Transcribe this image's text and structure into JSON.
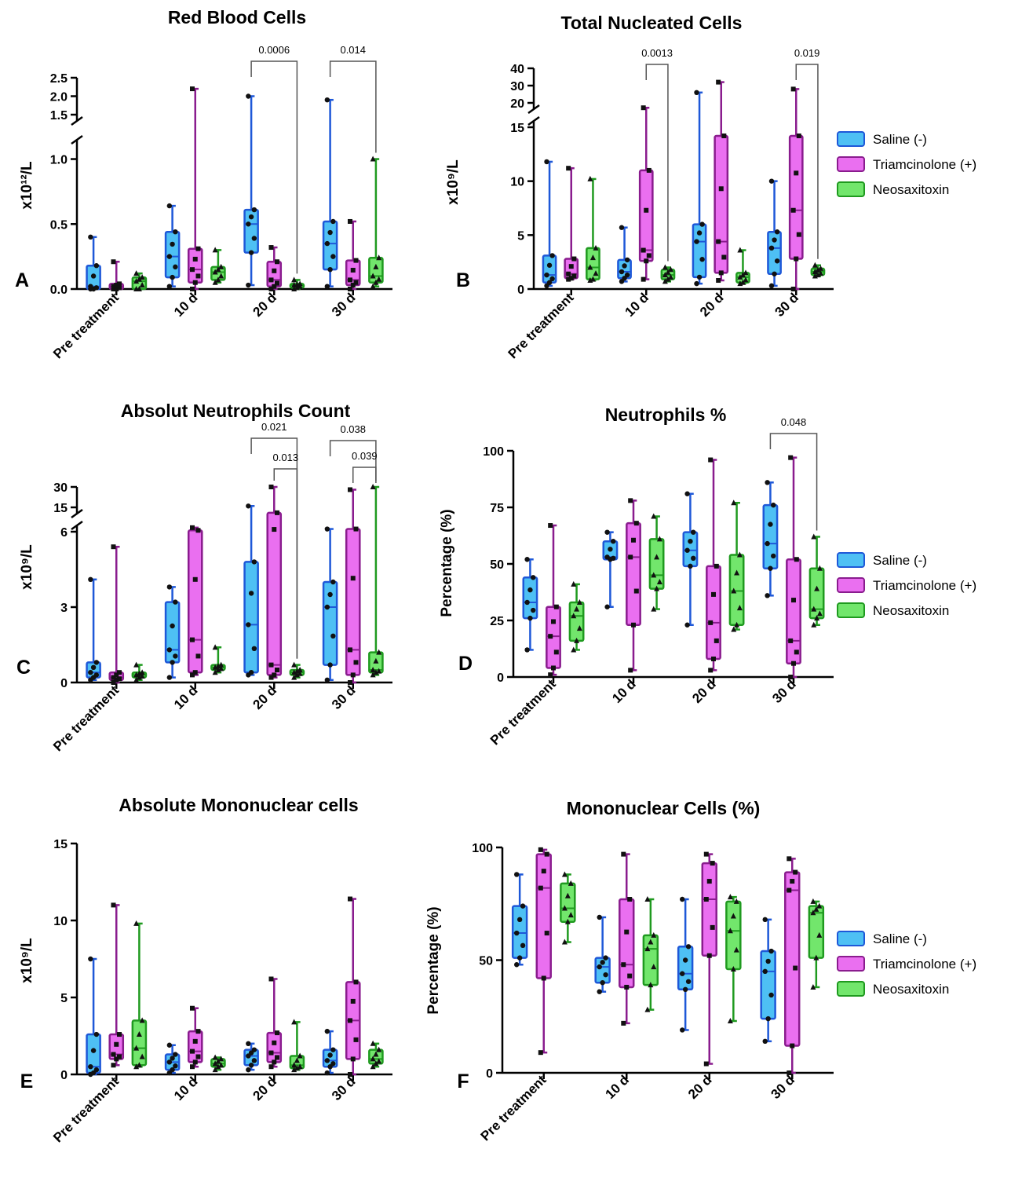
{
  "colors": {
    "saline": {
      "fill": "#4ec0f4",
      "stroke": "#1e58d8"
    },
    "triam": {
      "fill": "#ea6ff0",
      "stroke": "#8a1c8e"
    },
    "neo": {
      "fill": "#72e66c",
      "stroke": "#1f9a1f"
    }
  },
  "chart_data": [
    {
      "type": "box",
      "panel": "A",
      "title": "Red Blood Cells",
      "ylabel": "x10¹²/L",
      "categories": [
        "Pre treatment",
        "10 d",
        "20 d",
        "30 d"
      ],
      "y_axis": {
        "lower": [
          0,
          1.1
        ],
        "upper": [
          1.5,
          2.5
        ],
        "broken": true
      },
      "lower_ticks": [
        "0.0",
        "0.5",
        "1.0"
      ],
      "upper_ticks": [
        "1.5",
        "2.0",
        "2.5"
      ],
      "series": [
        {
          "name": "Saline (-)",
          "boxes": [
            [
              0,
              0,
              0.02,
              0.18,
              0.4
            ],
            [
              0.02,
              0.09,
              0.25,
              0.44,
              0.64
            ],
            [
              0.03,
              0.28,
              0.5,
              0.61,
              2.0
            ],
            [
              0.02,
              0.15,
              0.35,
              0.52,
              1.9
            ]
          ]
        },
        {
          "name": "Triamcinolone (+)",
          "boxes": [
            [
              0,
              0,
              0.02,
              0.04,
              0.21
            ],
            [
              0,
              0.05,
              0.15,
              0.31,
              2.2
            ],
            [
              0,
              0.02,
              0.07,
              0.21,
              0.32
            ],
            [
              0,
              0.03,
              0.07,
              0.22,
              0.52
            ]
          ]
        },
        {
          "name": "Neosaxitoxin",
          "boxes": [
            [
              0,
              0,
              0.06,
              0.09,
              0.12
            ],
            [
              0.05,
              0.07,
              0.13,
              0.17,
              0.3
            ],
            [
              0,
              0.01,
              0.03,
              0.04,
              0.07
            ],
            [
              0.02,
              0.05,
              0.1,
              0.24,
              1.0
            ]
          ]
        }
      ],
      "significance": [
        {
          "label": "0.0006",
          "category": "20 d",
          "from": "Saline (-)",
          "to": "Neosaxitoxin"
        },
        {
          "label": "0.014",
          "category": "30 d",
          "from": "Saline (-)",
          "to": "Neosaxitoxin"
        }
      ]
    },
    {
      "type": "box",
      "panel": "B",
      "title": "Total Nucleated Cells",
      "ylabel": "x10⁹/L",
      "categories": [
        "Pre treatment",
        "10 d",
        "20 d",
        "30 d"
      ],
      "y_axis": {
        "lower": [
          0,
          15
        ],
        "upper": [
          20,
          40
        ],
        "broken": true
      },
      "lower_ticks": [
        "0",
        "5",
        "10",
        "15"
      ],
      "upper_ticks": [
        "20",
        "30",
        "40"
      ],
      "series": [
        {
          "name": "Saline (-)",
          "boxes": [
            [
              0.3,
              0.6,
              1.3,
              3.1,
              11.8
            ],
            [
              0.7,
              1.0,
              1.6,
              2.7,
              5.7
            ],
            [
              0.5,
              1.1,
              4.4,
              6.0,
              26
            ],
            [
              0.3,
              1.4,
              3.8,
              5.3,
              10.0
            ]
          ]
        },
        {
          "name": "Triamcinolone (+)",
          "boxes": [
            [
              0.9,
              1.0,
              1.4,
              2.8,
              11.2
            ],
            [
              0.9,
              2.6,
              3.6,
              11.0,
              19
            ],
            [
              0.8,
              1.5,
              4.4,
              14.2,
              32
            ],
            [
              0,
              2.8,
              7.3,
              14.2,
              28
            ]
          ]
        },
        {
          "name": "Neosaxitoxin",
          "boxes": [
            [
              0.8,
              0.9,
              2.0,
              3.8,
              10.2
            ],
            [
              0.7,
              0.9,
              1.3,
              1.8,
              2.0
            ],
            [
              0.5,
              0.6,
              1.1,
              1.5,
              3.6
            ],
            [
              1.2,
              1.3,
              1.6,
              1.9,
              2.2
            ]
          ]
        }
      ],
      "significance": [
        {
          "label": "0.0013",
          "category": "10 d",
          "from": "Triamcinolone (+)",
          "to": "Neosaxitoxin"
        },
        {
          "label": "0.019",
          "category": "30 d",
          "from": "Triamcinolone (+)",
          "to": "Neosaxitoxin"
        }
      ]
    },
    {
      "type": "box",
      "panel": "C",
      "title": "Absolut Neutrophils Count",
      "ylabel": "x10⁹/L",
      "categories": [
        "Pre treatment",
        "10 d",
        "20 d",
        "30 d"
      ],
      "y_axis": {
        "lower": [
          0,
          6
        ],
        "upper": [
          15,
          30
        ],
        "broken": true
      },
      "lower_ticks": [
        "0",
        "3",
        "6"
      ],
      "upper_ticks": [
        "15",
        "30"
      ],
      "series": [
        {
          "name": "Saline (-)",
          "boxes": [
            [
              0.1,
              0.2,
              0.4,
              0.8,
              4.1
            ],
            [
              0.2,
              0.8,
              1.3,
              3.2,
              3.8
            ],
            [
              0.3,
              0.4,
              2.3,
              4.8,
              16
            ],
            [
              0.1,
              0.7,
              3.0,
              4.0,
              7
            ]
          ]
        },
        {
          "name": "Triamcinolone (+)",
          "boxes": [
            [
              0,
              0.1,
              0.2,
              0.4,
              5.4
            ],
            [
              0.3,
              0.4,
              1.7,
              6.5,
              7.5
            ],
            [
              0.2,
              0.3,
              0.7,
              13,
              30
            ],
            [
              0,
              0.3,
              1.3,
              7,
              28
            ]
          ]
        },
        {
          "name": "Neosaxitoxin",
          "boxes": [
            [
              0.1,
              0.2,
              0.3,
              0.4,
              0.7
            ],
            [
              0.4,
              0.5,
              0.6,
              0.7,
              1.4
            ],
            [
              0.2,
              0.3,
              0.4,
              0.5,
              0.7
            ],
            [
              0.3,
              0.4,
              0.5,
              1.2,
              40
            ]
          ]
        }
      ],
      "significance": [
        {
          "label": "0.021",
          "category": "20 d",
          "from": "Saline (-)",
          "to": "Neosaxitoxin"
        },
        {
          "label": "0.013",
          "category": "20 d",
          "from": "Triamcinolone (+)",
          "to": "Neosaxitoxin"
        },
        {
          "label": "0.038",
          "category": "30 d",
          "from": "Saline (-)",
          "to": "Neosaxitoxin"
        },
        {
          "label": "0.039",
          "category": "30 d",
          "from": "Triamcinolone (+)",
          "to": "Neosaxitoxin"
        }
      ]
    },
    {
      "type": "box",
      "panel": "D",
      "title": "Neutrophils %",
      "ylabel": "Percentage (%)",
      "categories": [
        "Pre treatment",
        "10 d",
        "20 d",
        "30 d"
      ],
      "y_axis": {
        "lower": [
          0,
          100
        ],
        "broken": false
      },
      "lower_ticks": [
        "0",
        "25",
        "50",
        "75",
        "100"
      ],
      "series": [
        {
          "name": "Saline (-)",
          "boxes": [
            [
              12,
              26,
              33,
              44,
              52
            ],
            [
              31,
              52,
              53,
              60,
              64
            ],
            [
              23,
              49,
              56,
              64,
              81
            ],
            [
              36,
              48,
              59,
              76,
              86
            ]
          ]
        },
        {
          "name": "Triamcinolone (+)",
          "boxes": [
            [
              1,
              4,
              18,
              31,
              67
            ],
            [
              3,
              23,
              53,
              68,
              78
            ],
            [
              3,
              8,
              24,
              49,
              96
            ],
            [
              0,
              6,
              16,
              52,
              97
            ]
          ]
        },
        {
          "name": "Neosaxitoxin",
          "boxes": [
            [
              12,
              16,
              27,
              33,
              41
            ],
            [
              30,
              39,
              45,
              61,
              71
            ],
            [
              21,
              23,
              38,
              54,
              77
            ],
            [
              23,
              26,
              30,
              48,
              62
            ]
          ]
        }
      ],
      "significance": [
        {
          "label": "0.048",
          "category": "30 d",
          "from": "Saline (-)",
          "to": "Neosaxitoxin"
        }
      ]
    },
    {
      "type": "box",
      "panel": "E",
      "title": "Absolute Mononuclear cells",
      "ylabel": "x10⁹/L",
      "categories": [
        "Pre treatment",
        "10 d",
        "20 d",
        "30 d"
      ],
      "y_axis": {
        "lower": [
          0,
          15
        ],
        "broken": false
      },
      "lower_ticks": [
        "0",
        "5",
        "10",
        "15"
      ],
      "series": [
        {
          "name": "Saline (-)",
          "boxes": [
            [
              0,
              0.1,
              0.5,
              2.6,
              7.5
            ],
            [
              0.1,
              0.3,
              0.8,
              1.3,
              1.9
            ],
            [
              0.3,
              0.6,
              1.2,
              1.6,
              2.0
            ],
            [
              0.1,
              0.5,
              0.9,
              1.6,
              2.8
            ]
          ]
        },
        {
          "name": "Triamcinolone (+)",
          "boxes": [
            [
              0.6,
              1.0,
              1.3,
              2.6,
              11.0
            ],
            [
              0.5,
              0.8,
              1.5,
              2.8,
              4.3
            ],
            [
              0.5,
              0.8,
              1.4,
              2.7,
              6.2
            ],
            [
              0,
              1.0,
              3.5,
              6.0,
              11.4
            ]
          ]
        },
        {
          "name": "Neosaxitoxin",
          "boxes": [
            [
              0.5,
              0.6,
              1.7,
              3.5,
              9.8
            ],
            [
              0.3,
              0.5,
              0.7,
              1.0,
              1.1
            ],
            [
              0.3,
              0.4,
              0.6,
              1.2,
              3.4
            ],
            [
              0.5,
              0.7,
              1.0,
              1.6,
              2.0
            ]
          ]
        }
      ],
      "significance": []
    },
    {
      "type": "box",
      "panel": "F",
      "title": "Mononuclear Cells (%)",
      "ylabel": "Percentage (%)",
      "categories": [
        "Pre treatment",
        "10 d",
        "20 d",
        "30 d"
      ],
      "y_axis": {
        "lower": [
          0,
          100
        ],
        "broken": false
      },
      "lower_ticks": [
        "0",
        "50",
        "100"
      ],
      "series": [
        {
          "name": "Saline (-)",
          "boxes": [
            [
              48,
              51,
              62,
              74,
              88
            ],
            [
              36,
              40,
              47,
              51,
              69
            ],
            [
              19,
              37,
              44,
              56,
              77
            ],
            [
              14,
              24,
              45,
              54,
              68
            ]
          ]
        },
        {
          "name": "Triamcinolone (+)",
          "boxes": [
            [
              9,
              42,
              82,
              97,
              99
            ],
            [
              22,
              38,
              48,
              77,
              97
            ],
            [
              4,
              52,
              77,
              93,
              97
            ],
            [
              0,
              12,
              81,
              89,
              95
            ]
          ]
        },
        {
          "name": "Neosaxitoxin",
          "boxes": [
            [
              58,
              67,
              73,
              84,
              88
            ],
            [
              28,
              39,
              55,
              61,
              77
            ],
            [
              23,
              46,
              63,
              76,
              78
            ],
            [
              38,
              51,
              71,
              74,
              76
            ]
          ]
        }
      ],
      "significance": []
    }
  ],
  "legend": [
    "Saline (-)",
    "Triamcinolone (+)",
    "Neosaxitoxin"
  ]
}
